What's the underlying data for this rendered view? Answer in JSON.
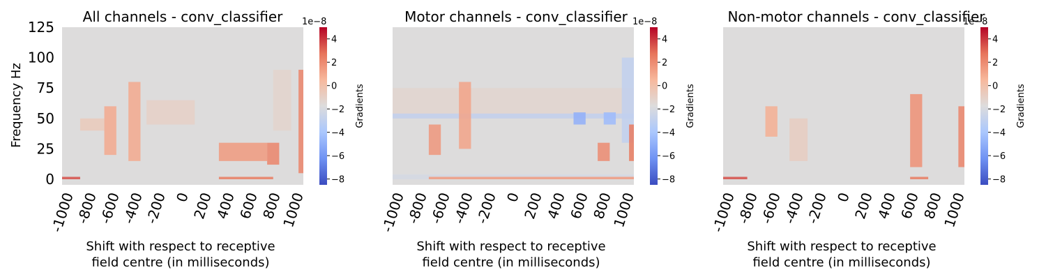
{
  "colorscale": {
    "name": "coolwarm",
    "colors": [
      "#3b4cc0",
      "#6f92f3",
      "#aac7fd",
      "#dddcdc",
      "#f7b89c",
      "#e7745b",
      "#b40426"
    ],
    "neutral": "#dddcdc"
  },
  "chart_data": [
    {
      "type": "heatmap",
      "title": "All channels - conv_classifier",
      "xlabel_line1": "Shift with respect to receptive",
      "xlabel_line2": "field centre (in milliseconds)",
      "ylabel": "Frequency Hz",
      "x_ticks": [
        "-1000",
        "-800",
        "-600",
        "-400",
        "-200",
        "0",
        "200",
        "400",
        "600",
        "800",
        "1000"
      ],
      "y_ticks": [
        "0",
        "25",
        "50",
        "75",
        "100",
        "125"
      ],
      "show_y_axis": true,
      "colorbar": {
        "label": "Gradients",
        "exponent": "1e−8",
        "ticks": [
          "4",
          "2",
          "0",
          "−2",
          "−4",
          "−6",
          "−8"
        ],
        "range": [
          -8.5,
          5
        ]
      },
      "x_range": [
        -1000,
        1000
      ],
      "y_range": [
        0,
        125
      ],
      "features": [
        {
          "x": [
            700,
            800
          ],
          "y": [
            12,
            30
          ],
          "value": 2.2
        },
        {
          "x": [
            300,
            700
          ],
          "y": [
            15,
            30
          ],
          "value": 1.5
        },
        {
          "x": [
            960,
            1000
          ],
          "y": [
            5,
            90
          ],
          "value": 2.2
        },
        {
          "x": [
            -450,
            -350
          ],
          "y": [
            15,
            80
          ],
          "value": 1.0
        },
        {
          "x": [
            -650,
            -550
          ],
          "y": [
            20,
            60
          ],
          "value": 1.0
        },
        {
          "x": [
            -300,
            100
          ],
          "y": [
            45,
            65
          ],
          "value": -1.0
        },
        {
          "x": [
            750,
            900
          ],
          "y": [
            40,
            90
          ],
          "value": -1.2
        },
        {
          "x": [
            -850,
            -650
          ],
          "y": [
            40,
            50
          ],
          "value": -0.6
        },
        {
          "x": [
            -1000,
            -850
          ],
          "y": [
            0,
            2
          ],
          "value": 3.5
        },
        {
          "x": [
            300,
            750
          ],
          "y": [
            0,
            2
          ],
          "value": 2.5
        }
      ]
    },
    {
      "type": "heatmap",
      "title": "Motor channels - conv_classifier",
      "xlabel_line1": "Shift with respect to receptive",
      "xlabel_line2": "field centre (in milliseconds)",
      "ylabel": "",
      "x_ticks": [
        "-1000",
        "-800",
        "-600",
        "-400",
        "-200",
        "0",
        "200",
        "400",
        "600",
        "800",
        "1000"
      ],
      "y_ticks": [],
      "show_y_axis": false,
      "colorbar": {
        "label": "Gradients",
        "exponent": "1e−8",
        "ticks": [
          "4",
          "2",
          "0",
          "−2",
          "−4",
          "−6",
          "−8"
        ],
        "range": [
          -8.5,
          5
        ]
      },
      "x_range": [
        -1000,
        1000
      ],
      "y_range": [
        0,
        125
      ],
      "features": [
        {
          "x": [
            -1000,
            1000
          ],
          "y": [
            50,
            75
          ],
          "value": -1.3
        },
        {
          "x": [
            -1000,
            1000
          ],
          "y": [
            50,
            54
          ],
          "value": -3.0
        },
        {
          "x": [
            500,
            600
          ],
          "y": [
            45,
            55
          ],
          "value": -5.0
        },
        {
          "x": [
            750,
            850
          ],
          "y": [
            45,
            55
          ],
          "value": -4.5
        },
        {
          "x": [
            900,
            1000
          ],
          "y": [
            30,
            100
          ],
          "value": -3.0
        },
        {
          "x": [
            -700,
            -600
          ],
          "y": [
            20,
            45
          ],
          "value": 1.6
        },
        {
          "x": [
            -450,
            -350
          ],
          "y": [
            25,
            80
          ],
          "value": 1.2
        },
        {
          "x": [
            700,
            800
          ],
          "y": [
            15,
            30
          ],
          "value": 2.0
        },
        {
          "x": [
            960,
            1000
          ],
          "y": [
            15,
            45
          ],
          "value": 2.5
        },
        {
          "x": [
            -1000,
            1000
          ],
          "y": [
            0,
            4
          ],
          "value": -2.2
        },
        {
          "x": [
            -700,
            1000
          ],
          "y": [
            0,
            2
          ],
          "value": 1.5
        }
      ]
    },
    {
      "type": "heatmap",
      "title": "Non-motor channels - conv_classifier",
      "xlabel_line1": "Shift with respect to receptive",
      "xlabel_line2": "field centre (in milliseconds)",
      "ylabel": "",
      "x_ticks": [
        "-1000",
        "-800",
        "-600",
        "-400",
        "-200",
        "0",
        "200",
        "400",
        "600",
        "800",
        "1000"
      ],
      "y_ticks": [],
      "show_y_axis": false,
      "colorbar": {
        "label": "Gradients",
        "exponent": "1e−8",
        "ticks": [
          "4",
          "2",
          "0",
          "−2",
          "−4",
          "−6",
          "−8"
        ],
        "range": [
          -8.5,
          5
        ]
      },
      "x_range": [
        -1000,
        1000
      ],
      "y_range": [
        0,
        125
      ],
      "features": [
        {
          "x": [
            550,
            650
          ],
          "y": [
            10,
            70
          ],
          "value": 1.8
        },
        {
          "x": [
            950,
            1000
          ],
          "y": [
            10,
            60
          ],
          "value": 2.2
        },
        {
          "x": [
            -650,
            -550
          ],
          "y": [
            35,
            60
          ],
          "value": 0.8
        },
        {
          "x": [
            -450,
            -300
          ],
          "y": [
            15,
            50
          ],
          "value": -0.8
        },
        {
          "x": [
            -1000,
            -800
          ],
          "y": [
            0,
            2
          ],
          "value": 3.5
        },
        {
          "x": [
            550,
            700
          ],
          "y": [
            0,
            2
          ],
          "value": 2.5
        }
      ]
    }
  ]
}
